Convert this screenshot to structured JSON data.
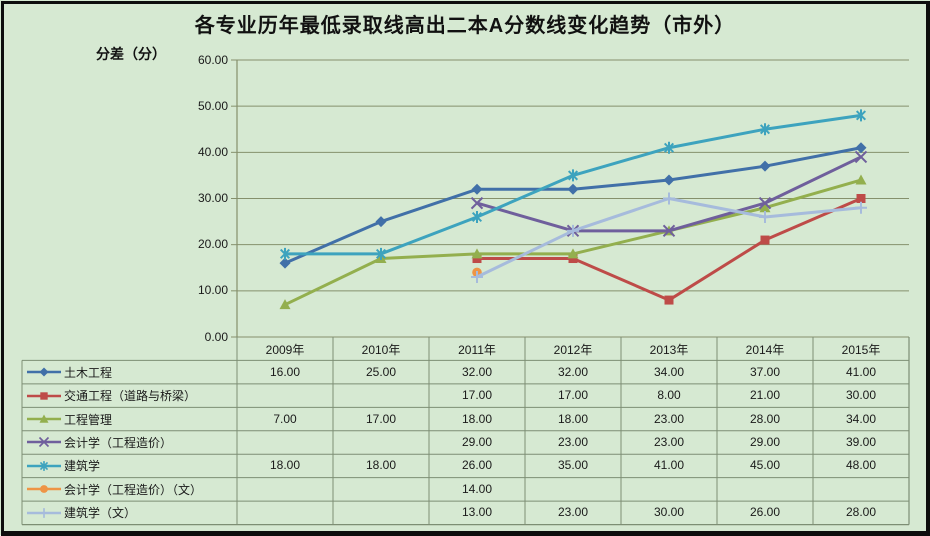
{
  "window": {
    "background_color": "#d6e9d2",
    "frame_color": "#0d0d0d",
    "gridline_color": "#85906c",
    "table_border_color": "#7d8e74",
    "text_color": "#1a1a1a"
  },
  "header": {
    "title": "各专业历年最低录取线高出二本A分数线变化趋势（市外）"
  },
  "chart_data": {
    "type": "line",
    "title": "各专业历年最低录取线高出二本A分数线变化趋势（市外）",
    "xlabel": "",
    "ylabel": "分差（分）",
    "ylim": [
      0,
      60
    ],
    "ytick_step": 10,
    "ytick_format": "0.00",
    "grid": true,
    "legend_position": "data-table-left",
    "categories": [
      "2009年",
      "2010年",
      "2011年",
      "2012年",
      "2013年",
      "2014年",
      "2015年"
    ],
    "series": [
      {
        "name": "土木工程",
        "color": "#4170a8",
        "marker": "diamond",
        "values": [
          16,
          25,
          32,
          32,
          34,
          37,
          41
        ]
      },
      {
        "name": "交通工程（道路与桥梁）",
        "color": "#be4b48",
        "marker": "square",
        "values": [
          null,
          null,
          17,
          17,
          8,
          21,
          30
        ]
      },
      {
        "name": "工程管理",
        "color": "#93af4e",
        "marker": "triangle",
        "values": [
          7,
          17,
          18,
          18,
          23,
          28,
          34
        ]
      },
      {
        "name": "会计学（工程造价）",
        "color": "#6f5f9c",
        "marker": "x",
        "values": [
          null,
          null,
          29,
          23,
          23,
          29,
          39
        ]
      },
      {
        "name": "建筑学",
        "color": "#3da3be",
        "marker": "asterisk",
        "values": [
          18,
          18,
          26,
          35,
          41,
          45,
          48
        ]
      },
      {
        "name": "会计学（工程造价）（文）",
        "color": "#ee9546",
        "marker": "circle",
        "values": [
          null,
          null,
          14,
          null,
          null,
          null,
          null
        ]
      },
      {
        "name": "建筑学（文）",
        "color": "#a6bbdc",
        "marker": "plus",
        "values": [
          null,
          null,
          13,
          23,
          30,
          26,
          28
        ]
      }
    ],
    "value_format": "0.00"
  }
}
